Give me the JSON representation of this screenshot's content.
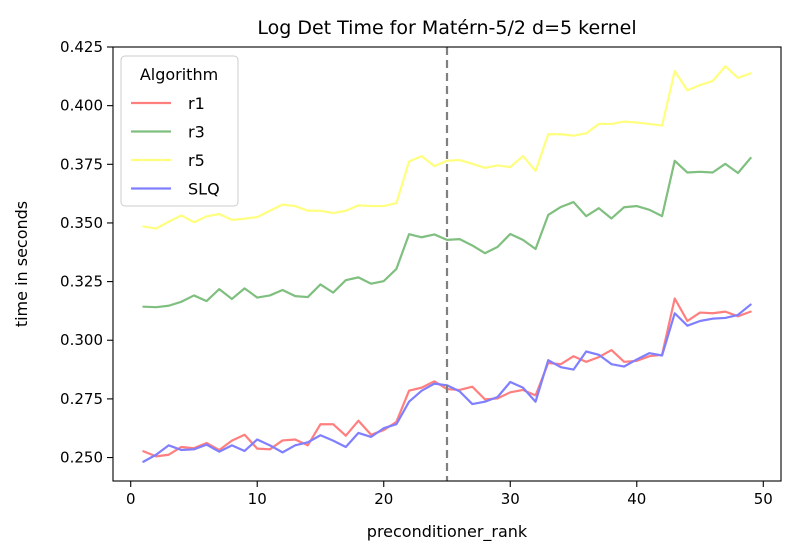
{
  "chart_data": {
    "type": "line",
    "title": "Log Det Time for Matérn-5/2 d=5 kernel",
    "xlabel": "preconditioner_rank",
    "ylabel": "time in seconds",
    "xlim": [
      -1.4,
      51.4
    ],
    "ylim": [
      0.24,
      0.425
    ],
    "xticks": [
      0,
      10,
      20,
      30,
      40,
      50
    ],
    "yticks": [
      0.25,
      0.275,
      0.3,
      0.325,
      0.35,
      0.375,
      0.4,
      0.425
    ],
    "ytick_labels": [
      "0.250",
      "0.275",
      "0.300",
      "0.325",
      "0.350",
      "0.375",
      "0.400",
      "0.425"
    ],
    "vline": {
      "x": 25,
      "color": "#808080",
      "style": "dashed"
    },
    "legend": {
      "title": "Algorithm",
      "location": "upper-left"
    },
    "x": [
      1,
      2,
      3,
      4,
      5,
      6,
      7,
      8,
      9,
      10,
      11,
      12,
      13,
      14,
      15,
      16,
      17,
      18,
      19,
      20,
      21,
      22,
      23,
      24,
      25,
      26,
      27,
      28,
      29,
      30,
      31,
      32,
      33,
      34,
      35,
      36,
      37,
      38,
      39,
      40,
      41,
      42,
      43,
      44,
      45,
      46,
      47,
      48,
      49
    ],
    "series": [
      {
        "name": "r1",
        "color": "#ff7f7f",
        "values": [
          0.2527,
          0.2505,
          0.2512,
          0.2545,
          0.254,
          0.2562,
          0.2532,
          0.2572,
          0.2597,
          0.2538,
          0.2535,
          0.2573,
          0.2577,
          0.2552,
          0.2642,
          0.2642,
          0.2593,
          0.2657,
          0.2597,
          0.2617,
          0.2652,
          0.2785,
          0.2798,
          0.2825,
          0.2792,
          0.2788,
          0.2802,
          0.2748,
          0.2752,
          0.2778,
          0.2788,
          0.2765,
          0.2903,
          0.2898,
          0.2932,
          0.2908,
          0.2928,
          0.2958,
          0.2908,
          0.2912,
          0.2932,
          0.2938,
          0.3178,
          0.3082,
          0.3118,
          0.3115,
          0.3122,
          0.3102,
          0.3122
        ]
      },
      {
        "name": "r3",
        "color": "#7fbf7f",
        "values": [
          0.3143,
          0.3141,
          0.3147,
          0.3164,
          0.3191,
          0.3167,
          0.3218,
          0.3176,
          0.3221,
          0.3182,
          0.3191,
          0.3214,
          0.3188,
          0.3184,
          0.3238,
          0.3203,
          0.3256,
          0.3268,
          0.3241,
          0.3252,
          0.3304,
          0.3452,
          0.3439,
          0.3451,
          0.3428,
          0.3431,
          0.3404,
          0.3371,
          0.3398,
          0.3453,
          0.3428,
          0.3389,
          0.3534,
          0.3568,
          0.3589,
          0.3529,
          0.3563,
          0.3519,
          0.3567,
          0.3572,
          0.3556,
          0.3529,
          0.3765,
          0.3715,
          0.3718,
          0.3715,
          0.3752,
          0.3713,
          0.3777
        ]
      },
      {
        "name": "r5",
        "color": "#ffff7f",
        "values": [
          0.3485,
          0.3476,
          0.3505,
          0.3532,
          0.3503,
          0.3528,
          0.3538,
          0.3513,
          0.3518,
          0.3525,
          0.3552,
          0.3578,
          0.3572,
          0.3552,
          0.3552,
          0.3542,
          0.3552,
          0.3575,
          0.3572,
          0.3572,
          0.3585,
          0.3762,
          0.3785,
          0.3742,
          0.3765,
          0.3768,
          0.3752,
          0.3735,
          0.3745,
          0.3738,
          0.3785,
          0.3722,
          0.3878,
          0.3878,
          0.3872,
          0.3882,
          0.3922,
          0.3922,
          0.3932,
          0.3928,
          0.3922,
          0.3915,
          0.4148,
          0.4065,
          0.4088,
          0.4105,
          0.4168,
          0.4118,
          0.4138
        ]
      },
      {
        "name": "SLQ",
        "color": "#7f7fff",
        "values": [
          0.2482,
          0.2512,
          0.2552,
          0.2532,
          0.2535,
          0.2555,
          0.2525,
          0.2552,
          0.2528,
          0.2577,
          0.2552,
          0.2522,
          0.2552,
          0.2565,
          0.2595,
          0.2572,
          0.2545,
          0.2605,
          0.2588,
          0.2625,
          0.2642,
          0.2738,
          0.2785,
          0.2815,
          0.2808,
          0.2782,
          0.2728,
          0.2738,
          0.2758,
          0.2822,
          0.2798,
          0.2738,
          0.2915,
          0.2885,
          0.2875,
          0.2952,
          0.2938,
          0.2898,
          0.2888,
          0.2918,
          0.2945,
          0.2935,
          0.3115,
          0.3062,
          0.3082,
          0.3092,
          0.3095,
          0.3108,
          0.3152
        ]
      }
    ]
  }
}
